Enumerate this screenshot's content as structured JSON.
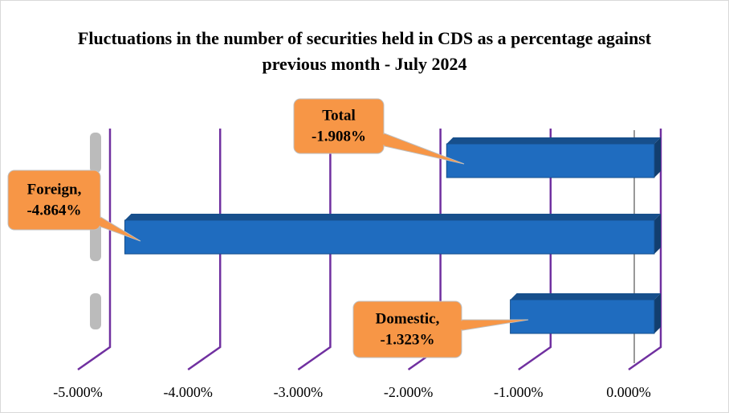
{
  "chart_data": {
    "type": "bar",
    "orientation": "horizontal",
    "title": "Fluctuations in the number of securities held in CDS as a percentage against previous month - July 2024",
    "categories": [
      "Total",
      "Foreign,",
      "Domestic,"
    ],
    "values": [
      -1.908,
      -4.864,
      -1.323
    ],
    "value_labels": [
      "-1.908%",
      "-4.864%",
      "-1.323%"
    ],
    "color": "#1f6cbf",
    "xlim": [
      -5,
      0
    ],
    "xticks": [
      {
        "value": -5,
        "label": "-5.000%"
      },
      {
        "value": -4,
        "label": "-4.000%"
      },
      {
        "value": -3,
        "label": "-3.000%"
      },
      {
        "value": -2,
        "label": "-2.000%"
      },
      {
        "value": -1,
        "label": "-1.000%"
      },
      {
        "value": 0,
        "label": "0.000%"
      }
    ],
    "grid": true
  }
}
